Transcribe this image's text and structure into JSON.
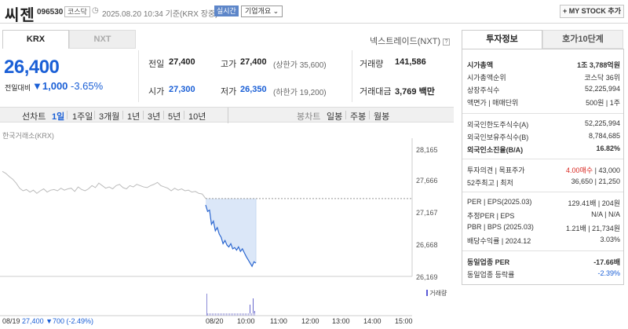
{
  "header": {
    "name": "씨젠",
    "code": "096530",
    "market": "코스닥",
    "datetime": "2025.08.20 10:34 기준(KRX 장중)",
    "realtime_label": "실시간",
    "overview_label": "기업개요",
    "overview_arrow": "⌄",
    "mystock_label": "+ MY STOCK 추가"
  },
  "tabs": {
    "krx": "KRX",
    "nxt": "NXT"
  },
  "nextrade_link": "넥스트레이드(NXT)",
  "quote": {
    "price": "26,400",
    "change_label": "전일대비",
    "change": "▼1,000",
    "change_pct": "-3.65%"
  },
  "summary": {
    "prev_close_label": "전일",
    "prev_close": "27,400",
    "open_label": "시가",
    "open": "27,300",
    "high_label": "고가",
    "high": "27,400",
    "upper_limit": "(상한가 35,600)",
    "low_label": "저가",
    "low": "26,350",
    "lower_limit": "(하한가 19,200)",
    "volume_label": "거래량",
    "volume": "141,586",
    "amount_label": "거래대금",
    "amount": "3,769 백만"
  },
  "period_bar": {
    "line_label": "선차트",
    "periods": [
      "1일",
      "1주일",
      "3개월",
      "1년",
      "3년",
      "5년",
      "10년"
    ],
    "selected": "1일",
    "candle_label": "봉차트",
    "candle_periods": [
      "일봉",
      "주봉",
      "월봉"
    ]
  },
  "chart_data": {
    "type": "line",
    "title": "한국거래소(KRX)",
    "y_ticks": [
      "28,165",
      "27,666",
      "27,167",
      "26,668",
      "26,169"
    ],
    "ylim": [
      26169,
      28165
    ],
    "prev_close": 27400,
    "x_ticks": [
      "08/20",
      "10:00",
      "11:00",
      "12:00",
      "13:00",
      "14:00",
      "15:00"
    ],
    "volume_label": "거래량",
    "footer_date": "08/19",
    "footer_value": "27,400 ▼700 (-2.49%)",
    "prev_day": [
      27820,
      27790,
      27740,
      27700,
      27640,
      27560,
      27520,
      27540,
      27500,
      27530,
      27480,
      27520,
      27550,
      27500,
      27530,
      27540,
      27520,
      27560,
      27530,
      27550,
      27560,
      27510,
      27580,
      27540,
      27520,
      27550,
      27600,
      27570,
      27640,
      27600,
      27560,
      27580,
      27550,
      27600,
      27620,
      27570,
      27550,
      27600,
      27580,
      27620,
      27600,
      27580,
      27570,
      27600,
      27620,
      27650,
      27600,
      27580,
      27560,
      27520,
      27560,
      27530,
      27550,
      27520,
      27530,
      27500,
      27510,
      27480,
      27470,
      27400
    ],
    "today": [
      27300,
      27200,
      27220,
      27000,
      27050,
      26900,
      26950,
      26850,
      26800,
      26700,
      26750,
      26680,
      26650,
      26700,
      26620,
      26640,
      26600,
      26650,
      26580,
      26620,
      26560,
      26500,
      26450,
      26400,
      26350,
      26420,
      26400
    ]
  },
  "invest": {
    "tab_active": "투자정보",
    "tab_other": "호가10단계",
    "rows1": [
      {
        "k": "시가총액",
        "v": "1조 3,788억원"
      },
      {
        "k": "시가총액순위",
        "v": "코스닥 36위"
      },
      {
        "k": "상장주식수",
        "v": "52,225,994"
      },
      {
        "k": "액면가 | 매매단위",
        "v": "500원 | 1주"
      }
    ],
    "rows2": [
      {
        "k": "외국인한도주식수(A)",
        "v": "52,225,994"
      },
      {
        "k": "외국인보유주식수(B)",
        "v": "8,784,685"
      },
      {
        "k": "외국인소진율(B/A)",
        "v": "16.82%"
      }
    ],
    "opinion": {
      "k": "투자의견 | 목표주가",
      "v1": "4.00매수",
      "v2": " | 43,000"
    },
    "week52": {
      "k": "52주최고 | 최저",
      "v": "36,650 | 21,250"
    },
    "rows4": [
      {
        "k": "PER | EPS(2025.03)",
        "v": "129.41배 | 204원"
      },
      {
        "k": "추정PER | EPS",
        "v": "N/A | N/A"
      },
      {
        "k": "PBR | BPS (2025.03)",
        "v": "1.21배 | 21,734원"
      },
      {
        "k": "배당수익률 | 2024.12",
        "v": "3.03%"
      }
    ],
    "industry_per": {
      "k": "동일업종 PER",
      "v": "-17.66배"
    },
    "industry_rate": {
      "k": "동일업종 등락률",
      "v": "-2.39%"
    }
  }
}
